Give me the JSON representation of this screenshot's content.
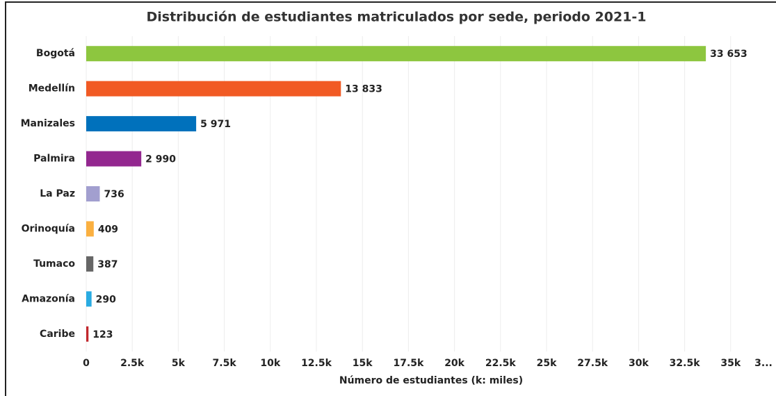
{
  "chart_data": {
    "type": "bar",
    "orientation": "horizontal",
    "title": "Distribución de estudiantes matriculados por sede, periodo 2021-1",
    "x_label": "Número de estudiantes (k: miles)",
    "categories": [
      "Bogotá",
      "Medellín",
      "Manizales",
      "Palmira",
      "La Paz",
      "Orinoquía",
      "Tumaco",
      "Amazonía",
      "Caribe"
    ],
    "values": [
      33653,
      13833,
      5971,
      2990,
      736,
      409,
      387,
      290,
      123
    ],
    "value_labels": [
      "33 653",
      "13 833",
      "5 971",
      "2 990",
      "736",
      "409",
      "387",
      "290",
      "123"
    ],
    "colors": [
      "#8dc63f",
      "#f15a24",
      "#0071bc",
      "#93278f",
      "#a29fcf",
      "#fbb040",
      "#666666",
      "#29abe2",
      "#c1272d"
    ],
    "xlim": [
      0,
      37500
    ],
    "xticks": [
      0,
      {
        "value": 2500,
        "label": "2.5k"
      },
      {
        "value": 5000,
        "label": "5k"
      },
      {
        "value": 7500,
        "label": "7.5k"
      },
      {
        "value": 10000,
        "label": "10k"
      },
      {
        "value": 12500,
        "label": "12.5k"
      },
      {
        "value": 15000,
        "label": "15k"
      },
      {
        "value": 17500,
        "label": "17.5k"
      },
      {
        "value": 20000,
        "label": "20k"
      },
      {
        "value": 22500,
        "label": "22.5k"
      },
      {
        "value": 25000,
        "label": "25k"
      },
      {
        "value": 27500,
        "label": "27.5k"
      },
      {
        "value": 30000,
        "label": "30k"
      },
      {
        "value": 32500,
        "label": "32.5k"
      },
      {
        "value": 35000,
        "label": "35k"
      },
      {
        "value": 37500,
        "label": "3..."
      }
    ],
    "grid": true
  }
}
